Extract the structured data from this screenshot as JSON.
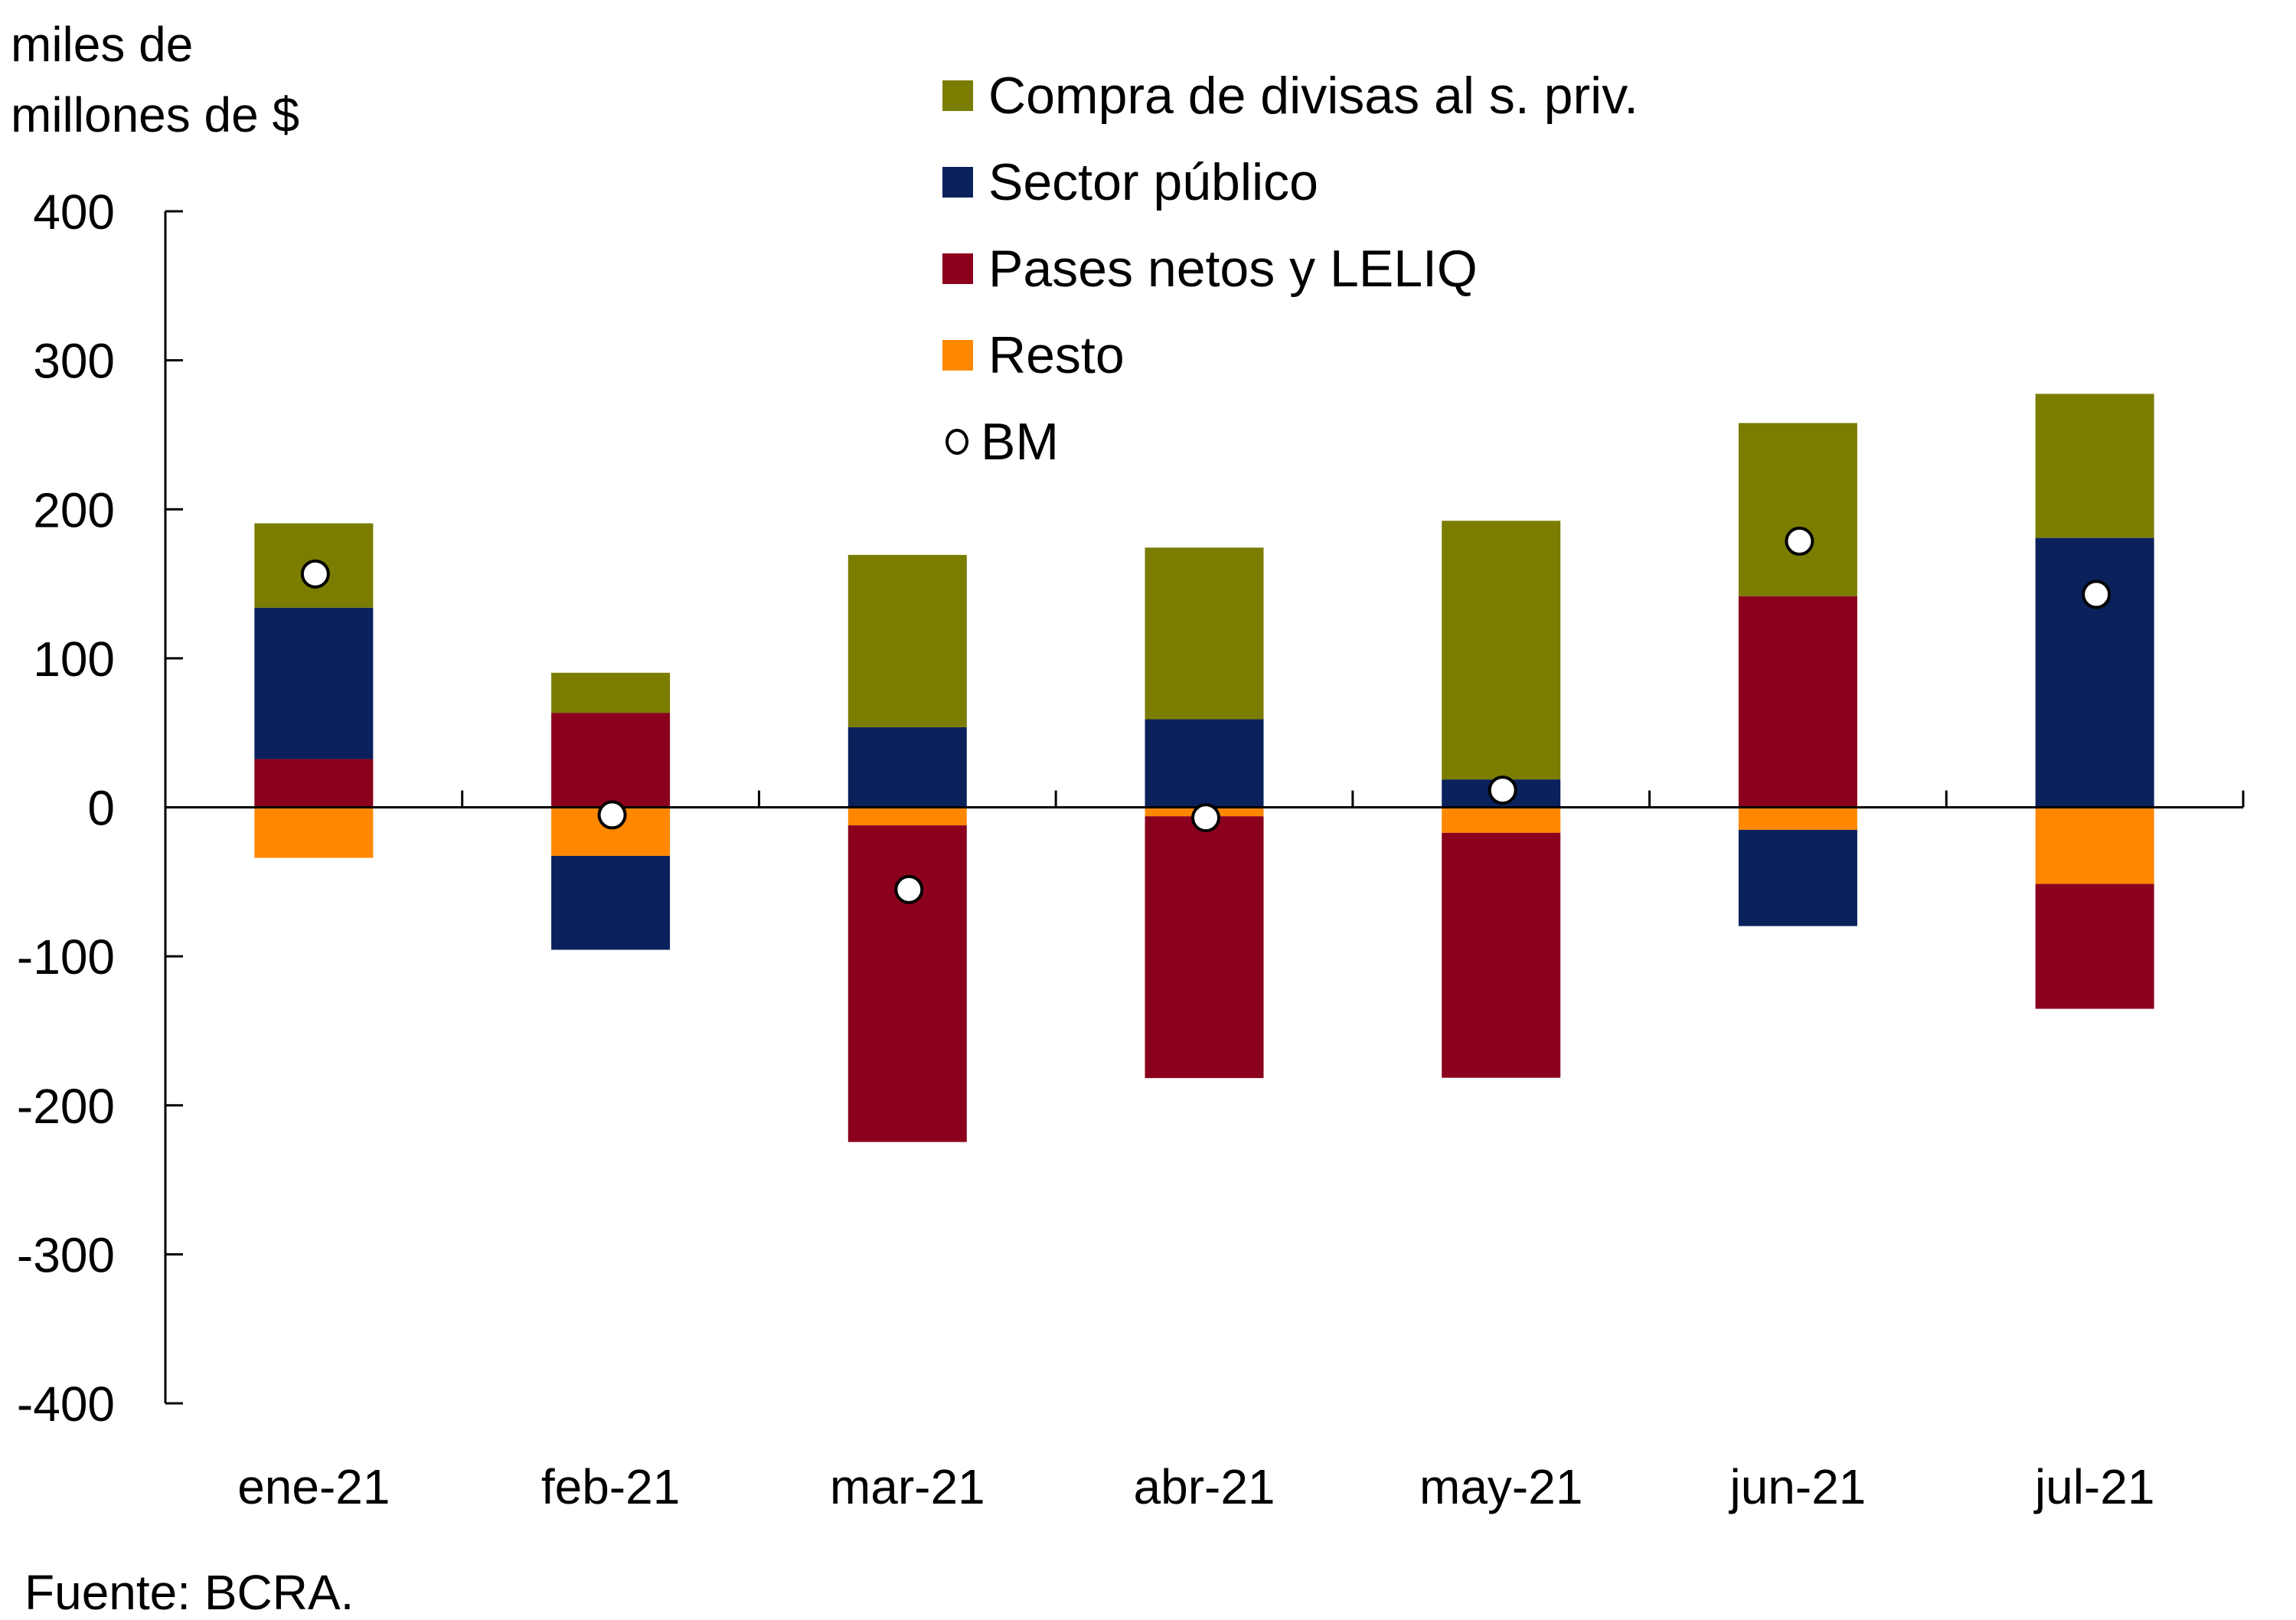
{
  "ylabel": {
    "line1": "miles de",
    "line2": "millones de $"
  },
  "source": "Fuente: BCRA.",
  "chart_data": {
    "type": "bar",
    "stacked": true,
    "title": "",
    "xlabel": "",
    "ylabel": "miles de millones de $",
    "ylim": [
      -400,
      400
    ],
    "yticks": [
      400,
      300,
      200,
      100,
      0,
      -100,
      -200,
      -300,
      -400
    ],
    "grid": false,
    "legend_position": "top-right",
    "categories": [
      "ene-21",
      "feb-21",
      "mar-21",
      "abr-21",
      "may-21",
      "jun-21",
      "jul-21"
    ],
    "series": [
      {
        "name": "Compra de divisas al s. priv.",
        "color": "#7a7d00",
        "kind": "bar",
        "values": [
          56.6,
          26.9,
          115.7,
          115.2,
          173.6,
          116.2,
          96.7
        ]
      },
      {
        "name": "Sector público",
        "color": "#0a215c",
        "kind": "bar",
        "values": [
          101.6,
          -63.0,
          53.7,
          59.1,
          18.7,
          -64.6,
          180.8
        ]
      },
      {
        "name": "Pases netos y LELIQ",
        "color": "#8b001d",
        "kind": "bar",
        "values": [
          32.4,
          63.4,
          -212.5,
          -175.7,
          -164.4,
          141.7,
          -83.8
        ]
      },
      {
        "name": "Resto",
        "color": "#ff8800",
        "kind": "bar",
        "values": [
          -33.9,
          -32.6,
          -12.1,
          -6.0,
          -17.1,
          -15.1,
          -51.4
        ]
      },
      {
        "name": "BM",
        "color": "#ffffff",
        "kind": "marker",
        "values": [
          156.6,
          -5.1,
          -55.2,
          -7.0,
          11.5,
          178.6,
          142.9
        ]
      }
    ],
    "stack_order_positive": [
      "Pases netos y LELIQ",
      "Sector público",
      "Compra de divisas al s. priv."
    ],
    "stack_order_negative": [
      "Resto",
      "Sector público",
      "Pases netos y LELIQ"
    ]
  }
}
